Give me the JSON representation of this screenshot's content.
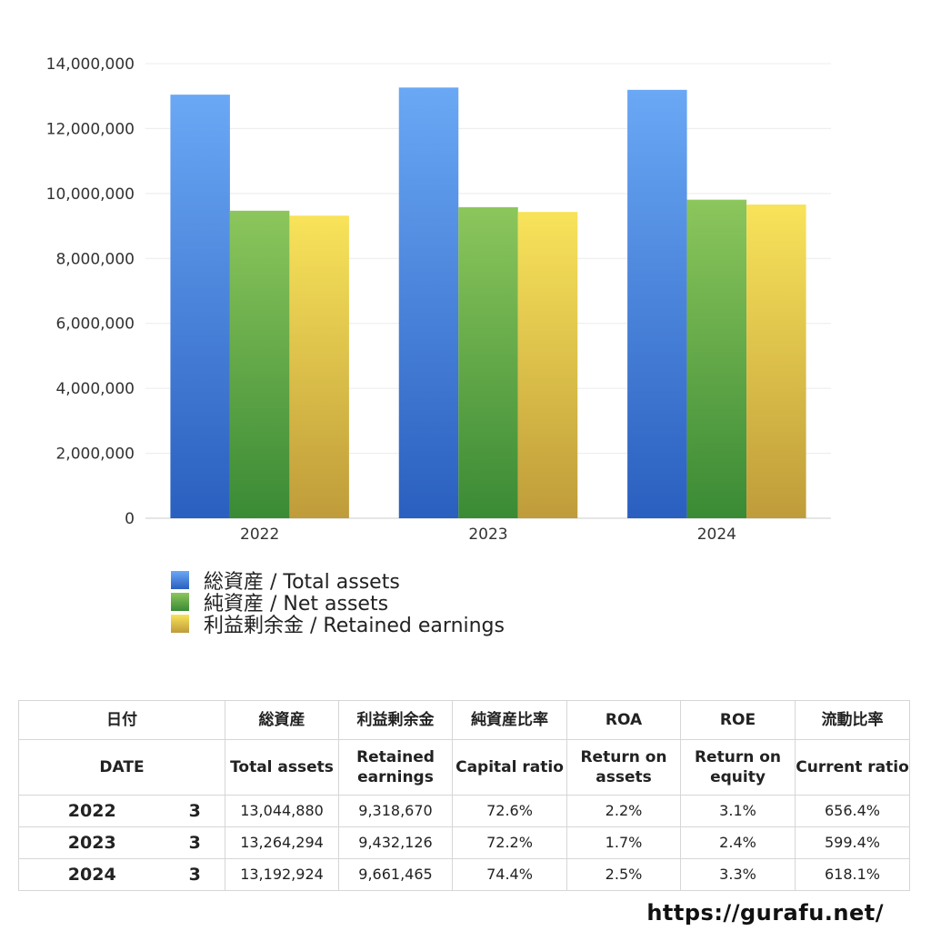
{
  "chart_data": {
    "type": "bar",
    "categories": [
      "2022",
      "2023",
      "2024"
    ],
    "series": [
      {
        "name": "総資産 / Total assets",
        "values": [
          13044880,
          13264294,
          13192924
        ],
        "color_top": "#6aa8f5",
        "color_bottom": "#2a5fbf"
      },
      {
        "name": "純資産 / Net assets",
        "values": [
          9470000,
          9580000,
          9810000
        ],
        "color_top": "#8cc65c",
        "color_bottom": "#3a8a35"
      },
      {
        "name": "利益剰余金 / Retained earnings",
        "values": [
          9318670,
          9432126,
          9661465
        ],
        "color_top": "#f8e35a",
        "color_bottom": "#bf9c3a"
      }
    ],
    "ylim": [
      0,
      14000000
    ],
    "yticks": [
      0,
      2000000,
      4000000,
      6000000,
      8000000,
      10000000,
      12000000,
      14000000
    ],
    "ytick_labels": [
      "0",
      "2,000,000",
      "4,000,000",
      "6,000,000",
      "8,000,000",
      "10,000,000",
      "12,000,000",
      "14,000,000"
    ],
    "grid": true,
    "legend_position": "bottom-left"
  },
  "table": {
    "header_jp": [
      "日付",
      "総資産",
      "利益剰余金",
      "純資産比率",
      "ROA",
      "ROE",
      "流動比率"
    ],
    "header_en": {
      "date": "DATE",
      "total_assets": "Total assets",
      "retained_1": "Retained",
      "retained_2": "earnings",
      "capital_ratio": "Capital ratio",
      "roa_1": "Return on",
      "roa_2": "assets",
      "roe_1": "Return on",
      "roe_2": "equity",
      "current_ratio": "Current ratio"
    },
    "rows": [
      {
        "year": "2022",
        "month": "3",
        "total_assets": "13,044,880",
        "retained": "9,318,670",
        "capital_ratio": "72.6%",
        "roa": "2.2%",
        "roe": "3.1%",
        "current_ratio": "656.4%"
      },
      {
        "year": "2023",
        "month": "3",
        "total_assets": "13,264,294",
        "retained": "9,432,126",
        "capital_ratio": "72.2%",
        "roa": "1.7%",
        "roe": "2.4%",
        "current_ratio": "599.4%"
      },
      {
        "year": "2024",
        "month": "3",
        "total_assets": "13,192,924",
        "retained": "9,661,465",
        "capital_ratio": "74.4%",
        "roa": "2.5%",
        "roe": "3.3%",
        "current_ratio": "618.1%"
      }
    ]
  },
  "footer_url": "https://gurafu.net/"
}
